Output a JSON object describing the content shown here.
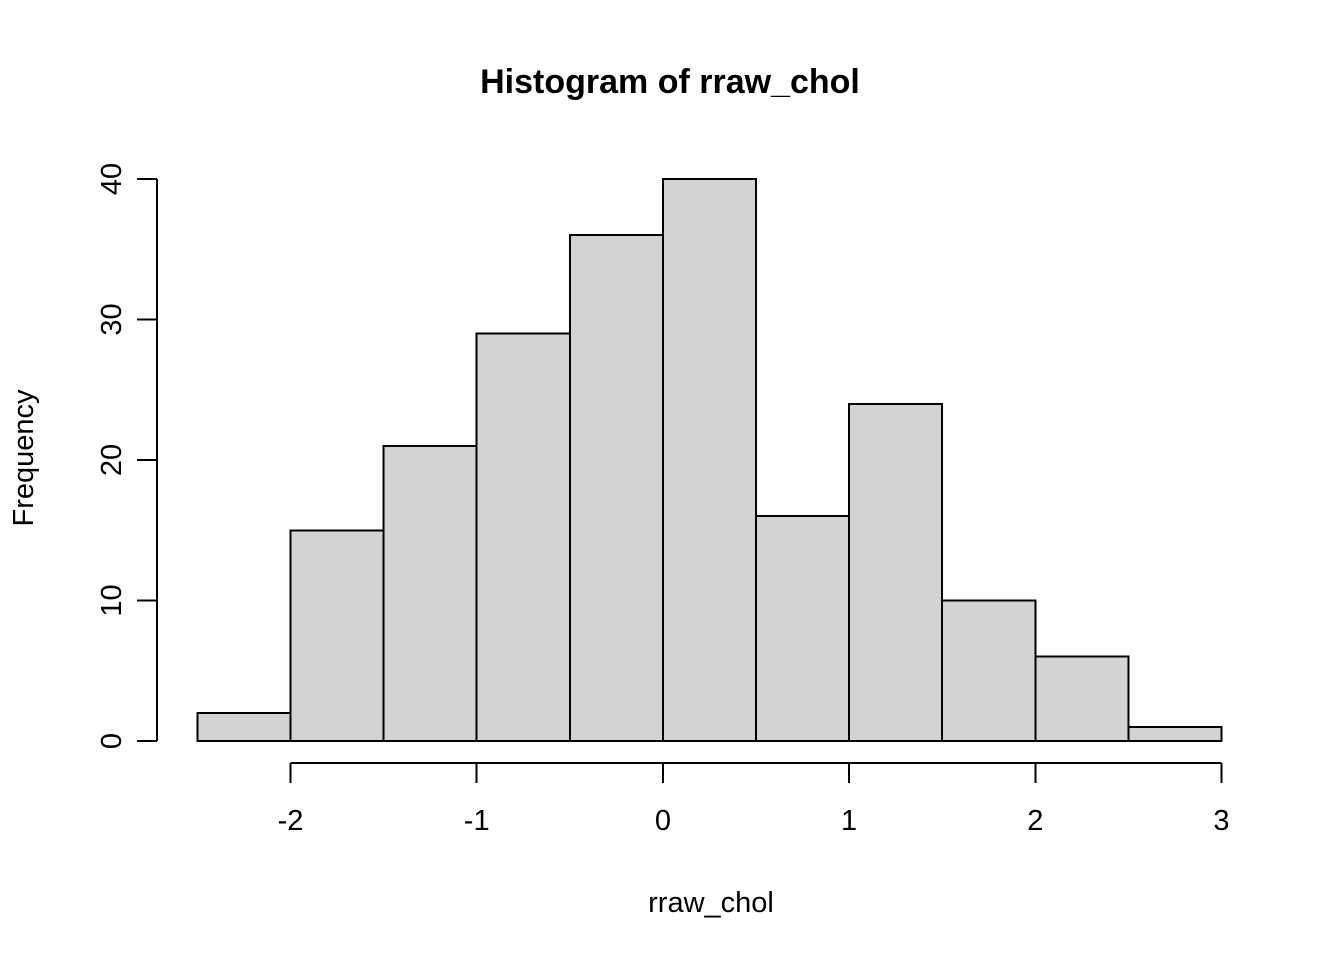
{
  "chart_data": {
    "type": "bar",
    "subtype": "histogram",
    "title": "Histogram of rraw_chol",
    "xlabel": "rraw_chol",
    "ylabel": "Frequency",
    "breaks": [
      -2.5,
      -2,
      -1.5,
      -1,
      -0.5,
      0,
      0.5,
      1,
      1.5,
      2,
      2.5,
      3
    ],
    "counts": [
      2,
      15,
      21,
      29,
      36,
      40,
      16,
      24,
      10,
      6,
      1
    ],
    "x_ticks": {
      "values": [
        -2,
        -1,
        0,
        1,
        2,
        3
      ],
      "labels": [
        "-2",
        "-1",
        "0",
        "1",
        "2",
        "3"
      ]
    },
    "y_ticks": {
      "values": [
        0,
        10,
        20,
        30,
        40
      ],
      "labels": [
        "0",
        "10",
        "20",
        "30",
        "40"
      ]
    },
    "xlim": [
      -2.5,
      3
    ],
    "ylim": [
      0,
      40
    ],
    "grid": false,
    "legend_position": "none",
    "colors": {
      "bar_fill": "#d3d3d3",
      "bar_border": "#000000",
      "axis": "#000000",
      "text": "#000000",
      "background": "#ffffff"
    }
  }
}
